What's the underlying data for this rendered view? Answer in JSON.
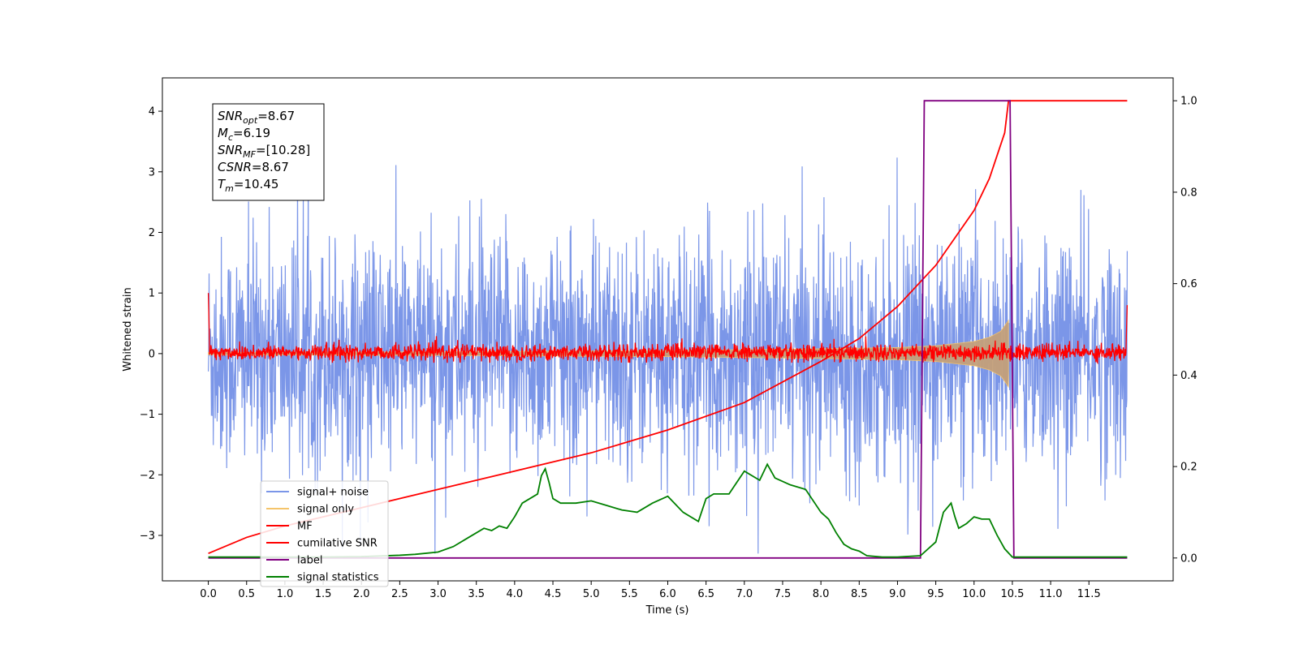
{
  "chart_data": {
    "type": "line",
    "xlabel": "Time (s)",
    "ylabel": "Whitened strain",
    "xlim": [
      -0.6,
      12.6
    ],
    "ylim": [
      -3.75,
      4.55
    ],
    "ylim_right": [
      -0.05,
      1.05
    ],
    "x_ticks": [
      0.0,
      0.5,
      1.0,
      1.5,
      2.0,
      2.5,
      3.0,
      3.5,
      4.0,
      4.5,
      5.0,
      5.5,
      6.0,
      6.5,
      7.0,
      7.5,
      8.0,
      8.5,
      9.0,
      9.5,
      10.0,
      10.5,
      11.0,
      11.5
    ],
    "x_tick_labels": [
      "0.0",
      "0.5",
      "1.0",
      "1.5",
      "2.0",
      "2.5",
      "3.0",
      "3.5",
      "4.0",
      "4.5",
      "5.0",
      "5.5",
      "6.0",
      "6.5",
      "7.0",
      "7.5",
      "8.0",
      "8.5",
      "9.0",
      "9.5",
      "10.0",
      "10.5",
      "11.0",
      "11.5"
    ],
    "y_ticks": [
      -3,
      -2,
      -1,
      0,
      1,
      2,
      3,
      4
    ],
    "y_tick_labels": [
      "−3",
      "−2",
      "−1",
      "0",
      "1",
      "2",
      "3",
      "4"
    ],
    "y_ticks_right": [
      0.0,
      0.2,
      0.4,
      0.6,
      0.8,
      1.0
    ],
    "y_tick_labels_right": [
      "0.0",
      "0.2",
      "0.4",
      "0.6",
      "0.8",
      "1.0"
    ],
    "grid": false,
    "legend_position": "lower-left",
    "info_box": [
      {
        "sym": "SNR",
        "sub": "opt",
        "val": "=8.67"
      },
      {
        "sym": "M",
        "sub": "c",
        "val": "=6.19"
      },
      {
        "sym": "SNR",
        "sub": "MF",
        "val": "=[10.28]"
      },
      {
        "sym": "CSNR",
        "sub": "",
        "val": "=8.67"
      },
      {
        "sym": "T",
        "sub": "m",
        "val": "=10.45"
      }
    ],
    "series": [
      {
        "name": "signal+ noise",
        "color": "#7b96e8",
        "axis": "left",
        "x_range": [
          0.0,
          12.0
        ],
        "approx_std": 0.95,
        "approx_range": [
          -3.3,
          3.3
        ]
      },
      {
        "name": "signal only",
        "color": "#f5c46a",
        "axis": "left",
        "x_range": [
          0.0,
          10.45
        ],
        "envelope": {
          "x": [
            0,
            3,
            6,
            8,
            9,
            9.5,
            10,
            10.2,
            10.35,
            10.45
          ],
          "amp": [
            0.02,
            0.03,
            0.05,
            0.08,
            0.1,
            0.13,
            0.2,
            0.27,
            0.37,
            0.55
          ]
        }
      },
      {
        "name": "MF",
        "color": "#ff0000",
        "axis": "left",
        "x_range": [
          0.0,
          12.0
        ],
        "approx_range": [
          -0.15,
          0.3
        ]
      },
      {
        "name": "cumilative SNR",
        "color": "#ff0000",
        "axis": "right",
        "x": [
          0.0,
          0.5,
          1.0,
          2.0,
          3.0,
          4.0,
          5.0,
          6.0,
          7.0,
          8.0,
          8.5,
          9.0,
          9.5,
          10.0,
          10.2,
          10.4,
          10.45,
          12.0
        ],
        "y": [
          0.01,
          0.045,
          0.07,
          0.11,
          0.15,
          0.19,
          0.23,
          0.28,
          0.34,
          0.43,
          0.48,
          0.55,
          0.64,
          0.76,
          0.83,
          0.93,
          1.0,
          1.0
        ]
      },
      {
        "name": "label",
        "color": "#800080",
        "axis": "right",
        "x": [
          0.0,
          9.3,
          9.35,
          10.47,
          10.52,
          12.0
        ],
        "y": [
          0.0,
          0.0,
          1.0,
          1.0,
          0.0,
          0.0
        ]
      },
      {
        "name": "signal statistics",
        "color": "#008000",
        "axis": "right",
        "x": [
          0.0,
          0.5,
          1.0,
          1.5,
          2.0,
          2.5,
          2.7,
          3.0,
          3.2,
          3.4,
          3.6,
          3.7,
          3.8,
          3.9,
          4.0,
          4.1,
          4.2,
          4.3,
          4.35,
          4.4,
          4.45,
          4.5,
          4.6,
          4.8,
          5.0,
          5.2,
          5.4,
          5.6,
          5.8,
          6.0,
          6.2,
          6.4,
          6.5,
          6.6,
          6.8,
          7.0,
          7.2,
          7.3,
          7.4,
          7.6,
          7.8,
          8.0,
          8.1,
          8.2,
          8.3,
          8.4,
          8.5,
          8.6,
          8.8,
          9.0,
          9.3,
          9.5,
          9.6,
          9.7,
          9.75,
          9.8,
          9.9,
          10.0,
          10.1,
          10.2,
          10.3,
          10.4,
          10.5,
          12.0
        ],
        "y": [
          0.002,
          0.002,
          0.002,
          0.002,
          0.003,
          0.006,
          0.008,
          0.013,
          0.025,
          0.045,
          0.065,
          0.06,
          0.07,
          0.065,
          0.09,
          0.12,
          0.13,
          0.14,
          0.18,
          0.195,
          0.165,
          0.13,
          0.12,
          0.12,
          0.125,
          0.115,
          0.105,
          0.1,
          0.12,
          0.135,
          0.1,
          0.08,
          0.13,
          0.14,
          0.14,
          0.19,
          0.17,
          0.205,
          0.175,
          0.16,
          0.15,
          0.1,
          0.085,
          0.055,
          0.03,
          0.02,
          0.015,
          0.005,
          0.002,
          0.002,
          0.005,
          0.035,
          0.1,
          0.12,
          0.09,
          0.065,
          0.075,
          0.09,
          0.085,
          0.085,
          0.05,
          0.02,
          0.002,
          0.002
        ]
      }
    ]
  }
}
